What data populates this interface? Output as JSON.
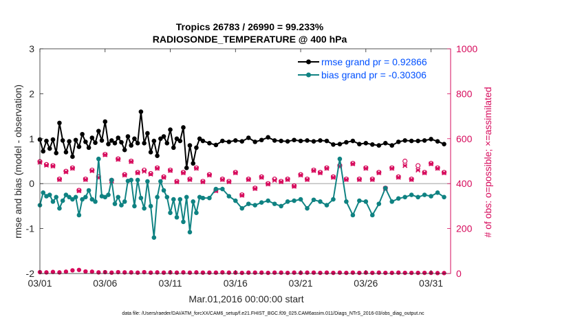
{
  "colors": {
    "rmse": "#000000",
    "bias": "#0f8282",
    "obs": "#d6095b",
    "legend_text": "#0050ff",
    "zero_line": "#aaaaaa"
  },
  "chart_data": {
    "type": "line",
    "title": "Tropics 26783 / 26990 = 99.233%",
    "subtitle": "RADIOSONDE_TEMPERATURE @ 400 hPa",
    "xlabel": "Mar.01,2016 00:00:00 start",
    "ylabel_left": "rmse and bias (model - observation)",
    "ylabel_right": "# of obs: o=possible; ×=assimilated",
    "xlim": [
      0,
      31.5
    ],
    "ylim_left": [
      -2,
      3
    ],
    "ylim_right": [
      0,
      1000
    ],
    "x_ticks": [
      {
        "x": 0,
        "label": "03/01"
      },
      {
        "x": 5,
        "label": "03/06"
      },
      {
        "x": 10,
        "label": "03/11"
      },
      {
        "x": 15,
        "label": "03/16"
      },
      {
        "x": 20,
        "label": "03/21"
      },
      {
        "x": 25,
        "label": "03/26"
      },
      {
        "x": 30,
        "label": "03/31"
      }
    ],
    "y_ticks_left": [
      {
        "v": -2,
        "label": "-2"
      },
      {
        "v": -1,
        "label": "-1"
      },
      {
        "v": 0,
        "label": "0"
      },
      {
        "v": 1,
        "label": "1"
      },
      {
        "v": 2,
        "label": "2"
      },
      {
        "v": 3,
        "label": "3"
      }
    ],
    "y_ticks_right": [
      {
        "v": 0,
        "label": "0"
      },
      {
        "v": 200,
        "label": "200"
      },
      {
        "v": 400,
        "label": "400"
      },
      {
        "v": 600,
        "label": "600"
      },
      {
        "v": 800,
        "label": "800"
      },
      {
        "v": 1000,
        "label": "1000"
      }
    ],
    "legend": {
      "placement": "top-right",
      "rmse_label": "rmse grand pr = 0.92866",
      "bias_label": "bias grand pr = -0.30306"
    },
    "rmse": {
      "name": "rmse",
      "x": [
        0,
        0.25,
        0.5,
        0.75,
        1,
        1.25,
        1.5,
        1.75,
        2,
        2.25,
        2.5,
        2.75,
        3,
        3.25,
        3.5,
        3.75,
        4,
        4.25,
        4.5,
        4.75,
        5,
        5.25,
        5.5,
        5.75,
        6,
        6.25,
        6.5,
        6.75,
        7,
        7.25,
        7.5,
        7.75,
        8,
        8.25,
        8.5,
        8.75,
        9,
        9.25,
        9.5,
        9.75,
        10,
        10.25,
        10.5,
        10.75,
        11,
        11.25,
        11.5,
        11.75,
        12,
        12.25,
        12.5,
        13,
        13.5,
        14,
        14.5,
        15,
        15.5,
        16,
        16.5,
        17,
        17.5,
        18,
        18.5,
        19,
        19.5,
        20,
        20.5,
        21,
        21.5,
        22,
        22.5,
        23,
        23.5,
        24,
        24.5,
        25,
        25.5,
        26,
        26.5,
        27,
        27.5,
        28,
        28.5,
        29,
        29.5,
        30,
        30.5,
        31
      ],
      "values": [
        0.98,
        0.72,
        0.95,
        0.78,
        0.98,
        0.68,
        1.35,
        0.96,
        0.7,
        0.94,
        0.6,
        0.97,
        0.82,
        1.1,
        0.93,
        0.8,
        1.02,
        0.91,
        1.17,
        0.96,
        1.38,
        0.88,
        0.96,
        0.9,
        1.02,
        0.92,
        0.75,
        1.05,
        0.85,
        1.0,
        0.9,
        1.6,
        0.9,
        1.12,
        0.7,
        0.95,
        0.62,
        1.0,
        1.05,
        0.9,
        1.2,
        0.8,
        1.0,
        0.95,
        1.25,
        0.35,
        0.85,
        0.45,
        0.8,
        1.0,
        0.95,
        0.9,
        0.86,
        0.95,
        0.93,
        0.96,
        0.94,
        1.02,
        0.93,
        0.97,
        1.03,
        0.96,
        0.95,
        0.94,
        0.97,
        0.95,
        0.96,
        0.94,
        0.96,
        0.95,
        0.87,
        0.88,
        0.92,
        0.95,
        0.88,
        0.9,
        0.87,
        0.85,
        0.9,
        0.85,
        0.93,
        0.96,
        0.95,
        0.95,
        0.96,
        0.99,
        0.94,
        0.88
      ]
    },
    "bias": {
      "name": "bias",
      "x": [
        0,
        0.25,
        0.5,
        0.75,
        1,
        1.25,
        1.5,
        1.75,
        2,
        2.25,
        2.5,
        2.75,
        3,
        3.25,
        3.5,
        3.75,
        4,
        4.25,
        4.5,
        4.75,
        5,
        5.25,
        5.5,
        5.75,
        6,
        6.25,
        6.5,
        6.75,
        7,
        7.25,
        7.5,
        7.75,
        8,
        8.25,
        8.5,
        8.75,
        9,
        9.25,
        9.5,
        9.75,
        10,
        10.25,
        10.5,
        10.75,
        11,
        11.25,
        11.5,
        11.75,
        12,
        12.25,
        12.5,
        13,
        13.5,
        14,
        14.5,
        15,
        15.5,
        16,
        16.5,
        17,
        17.5,
        18,
        18.5,
        19,
        19.5,
        20,
        20.5,
        21,
        21.5,
        22,
        22.5,
        23,
        23.5,
        24,
        24.5,
        25,
        25.5,
        26,
        26.5,
        27,
        27.5,
        28,
        28.5,
        29,
        29.5,
        30,
        30.5,
        31
      ],
      "values": [
        -0.48,
        -0.2,
        -0.28,
        -0.25,
        -0.4,
        -0.3,
        -0.55,
        -0.38,
        -0.25,
        -0.3,
        -0.35,
        -0.3,
        -0.7,
        -0.35,
        -0.3,
        -0.15,
        -0.35,
        -0.4,
        0.55,
        -0.28,
        -0.3,
        -0.25,
        0.08,
        -0.45,
        -0.3,
        -0.48,
        -0.4,
        0.06,
        0.08,
        -0.5,
        0.08,
        -0.32,
        -0.55,
        0.05,
        -0.5,
        -1.2,
        -0.3,
        0.05,
        -0.15,
        -0.3,
        -0.65,
        -0.35,
        -0.75,
        -0.35,
        -0.85,
        -0.3,
        -1.08,
        -0.4,
        -0.65,
        -0.3,
        -0.32,
        -0.32,
        -0.12,
        -0.12,
        -0.28,
        -0.38,
        -0.55,
        -0.45,
        -0.48,
        -0.42,
        -0.38,
        -0.45,
        -0.5,
        -0.4,
        -0.38,
        -0.35,
        -0.55,
        -0.36,
        -0.4,
        -0.48,
        -0.35,
        0.55,
        -0.4,
        -0.7,
        -0.38,
        -0.4,
        -0.7,
        -0.45,
        -0.1,
        -0.4,
        -0.33,
        -0.3,
        -0.25,
        -0.3,
        -0.25,
        -0.28,
        -0.2,
        -0.3
      ],
      "zero_line": 0
    },
    "obs_possible": {
      "name": "possible",
      "x": [
        0,
        0.5,
        1,
        1.5,
        2,
        2.5,
        3,
        3.5,
        4,
        4.5,
        5,
        5.5,
        6,
        6.5,
        7,
        7.5,
        8,
        8.5,
        9,
        9.5,
        10,
        10.5,
        11,
        11.5,
        12,
        12.5,
        13,
        13.5,
        14,
        14.5,
        15,
        15.5,
        16,
        16.5,
        17,
        17.5,
        18,
        18.5,
        19,
        19.5,
        20,
        20.5,
        21,
        21.5,
        22,
        22.5,
        23,
        23.5,
        24,
        24.5,
        25,
        25.5,
        26,
        26.5,
        27,
        27.5,
        28,
        28.5,
        29,
        29.5,
        30,
        30.5,
        31
      ],
      "values": [
        498,
        485,
        480,
        420,
        455,
        470,
        370,
        420,
        460,
        430,
        530,
        415,
        510,
        440,
        500,
        450,
        460,
        445,
        470,
        430,
        460,
        410,
        450,
        420,
        470,
        410,
        440,
        370,
        420,
        410,
        450,
        350,
        420,
        380,
        430,
        400,
        420,
        410,
        420,
        390,
        440,
        420,
        460,
        450,
        470,
        430,
        480,
        420,
        490,
        420,
        470,
        420,
        450,
        380,
        470,
        430,
        500,
        420,
        480,
        450,
        490,
        470,
        450
      ],
      "assimilated": [
        495,
        482,
        478,
        418,
        452,
        468,
        368,
        418,
        457,
        428,
        528,
        412,
        508,
        438,
        498,
        448,
        455,
        442,
        468,
        428,
        458,
        408,
        448,
        418,
        468,
        408,
        438,
        368,
        418,
        408,
        448,
        348,
        418,
        378,
        428,
        398,
        415,
        408,
        418,
        388,
        438,
        418,
        458,
        448,
        468,
        428,
        478,
        418,
        488,
        418,
        468,
        418,
        448,
        378,
        468,
        428,
        480,
        418,
        460,
        448,
        488,
        468,
        448
      ]
    },
    "obs_bottom": {
      "x": [
        0,
        0.5,
        1,
        1.5,
        2,
        2.5,
        3,
        3.5,
        4,
        4.5,
        5,
        5.5,
        6,
        6.5,
        7,
        7.5,
        8,
        8.5,
        9,
        9.5,
        10,
        10.5,
        11,
        11.5,
        12,
        12.5,
        13,
        13.5,
        14,
        14.5,
        15,
        15.5,
        16,
        16.5,
        17,
        17.5,
        18,
        18.5,
        19,
        19.5,
        20,
        20.5,
        21,
        21.5,
        22,
        22.5,
        23,
        23.5,
        24,
        24.5,
        25,
        25.5,
        26,
        26.5,
        27,
        27.5,
        28,
        28.5,
        29,
        29.5,
        30,
        30.5,
        31
      ],
      "values": [
        6,
        5,
        7,
        5,
        8,
        14,
        16,
        9,
        8,
        5,
        6,
        4,
        6,
        5,
        5,
        4,
        6,
        4,
        5,
        4,
        5,
        4,
        5,
        4,
        5,
        4,
        4,
        4,
        5,
        4,
        4,
        3,
        4,
        4,
        4,
        3,
        4,
        4,
        3,
        4,
        3,
        4,
        4,
        3,
        4,
        3,
        4,
        3,
        4,
        3,
        4,
        3,
        4,
        3,
        3,
        4,
        3,
        3,
        3,
        3,
        3,
        2,
        2
      ]
    },
    "footnote": "data file: /Users/raeder/DAI/ATM_forcXX/CAM6_setup/f.e21.FHIST_BGC.f09_025.CAM6assim.011/Diags_NTrS_2016-03/obs_diag_output.nc"
  }
}
